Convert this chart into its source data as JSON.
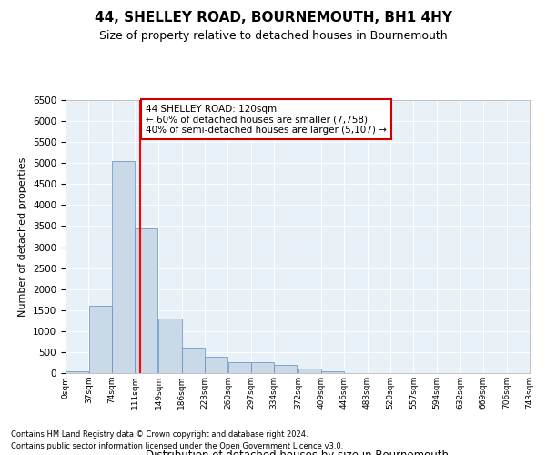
{
  "title": "44, SHELLEY ROAD, BOURNEMOUTH, BH1 4HY",
  "subtitle": "Size of property relative to detached houses in Bournemouth",
  "xlabel": "Distribution of detached houses by size in Bournemouth",
  "ylabel": "Number of detached properties",
  "bar_color": "#c9d9e8",
  "bar_edge_color": "#5a8fc0",
  "background_color": "#e8f0f8",
  "grid_color": "#ffffff",
  "red_line_x": 120,
  "annotation_text": "44 SHELLEY ROAD: 120sqm\n← 60% of detached houses are smaller (7,758)\n40% of semi-detached houses are larger (5,107) →",
  "annotation_box_color": "#ffffff",
  "annotation_box_edge": "#cc0000",
  "footer_line1": "Contains HM Land Registry data © Crown copyright and database right 2024.",
  "footer_line2": "Contains public sector information licensed under the Open Government Licence v3.0.",
  "bin_edges": [
    0,
    37,
    74,
    111,
    149,
    186,
    223,
    260,
    297,
    334,
    372,
    409,
    446,
    483,
    520,
    557,
    594,
    632,
    669,
    706,
    743
  ],
  "bin_labels": [
    "0sqm",
    "37sqm",
    "74sqm",
    "111sqm",
    "149sqm",
    "186sqm",
    "223sqm",
    "260sqm",
    "297sqm",
    "334sqm",
    "372sqm",
    "409sqm",
    "446sqm",
    "483sqm",
    "520sqm",
    "557sqm",
    "594sqm",
    "632sqm",
    "669sqm",
    "706sqm",
    "743sqm"
  ],
  "bar_heights": [
    50,
    1600,
    5050,
    3450,
    1300,
    600,
    400,
    270,
    270,
    200,
    100,
    50,
    0,
    0,
    0,
    0,
    0,
    0,
    0,
    0
  ],
  "ylim": [
    0,
    6500
  ],
  "yticks": [
    0,
    500,
    1000,
    1500,
    2000,
    2500,
    3000,
    3500,
    4000,
    4500,
    5000,
    5500,
    6000,
    6500
  ]
}
